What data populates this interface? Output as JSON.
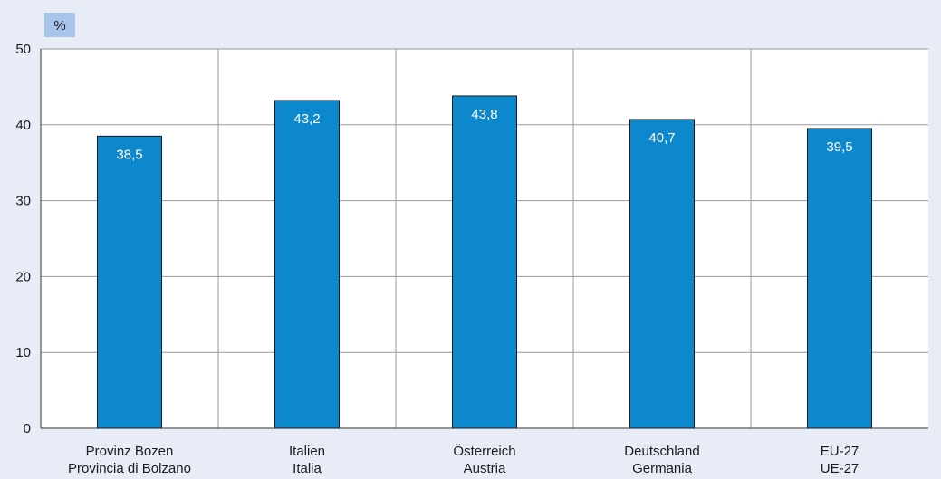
{
  "chart_data": {
    "type": "bar",
    "unit_label": "%",
    "categories": [
      [
        "Provinz Bozen",
        "Provincia di Bolzano"
      ],
      [
        "Italien",
        "Italia"
      ],
      [
        "Österreich",
        "Austria"
      ],
      [
        "Deutschland",
        "Germania"
      ],
      [
        "EU-27",
        "UE-27"
      ]
    ],
    "values": [
      38.5,
      43.2,
      43.8,
      40.7,
      39.5
    ],
    "data_labels": [
      "38,5",
      "43,2",
      "43,8",
      "40,7",
      "39,5"
    ],
    "y_ticks": [
      0,
      10,
      20,
      30,
      40,
      50
    ],
    "ylim": [
      0,
      50
    ],
    "grid": "horizontal and vertical",
    "legend": "none",
    "colors": {
      "bar_fill": "#0e88cc",
      "bar_stroke": "#1a1a1a",
      "plot_background": "#ffffff",
      "page_background": "#e8ecf7",
      "unit_box": "#a8c4ea",
      "grid": "#9a9a9a"
    }
  }
}
